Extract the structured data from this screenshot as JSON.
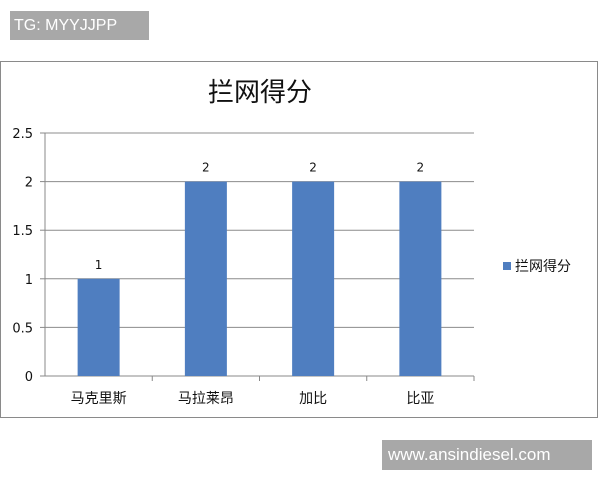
{
  "header_tag": "TG: MYYJJPP",
  "footer_site": "www.ansindiesel.com",
  "chart_data": {
    "type": "bar",
    "title": "拦网得分",
    "categories": [
      "马克里斯",
      "马拉莱昂",
      "加比",
      "比亚"
    ],
    "series": [
      {
        "name": "拦网得分",
        "values": [
          1,
          2,
          2,
          2
        ],
        "color": "#4f7ec0"
      }
    ],
    "ylim": [
      0,
      2.5
    ],
    "yticks": [
      "0",
      "0.5",
      "1",
      "1.5",
      "2",
      "2.5"
    ],
    "data_labels": [
      "1",
      "2",
      "2",
      "2"
    ],
    "grid": true,
    "legend": "right"
  }
}
